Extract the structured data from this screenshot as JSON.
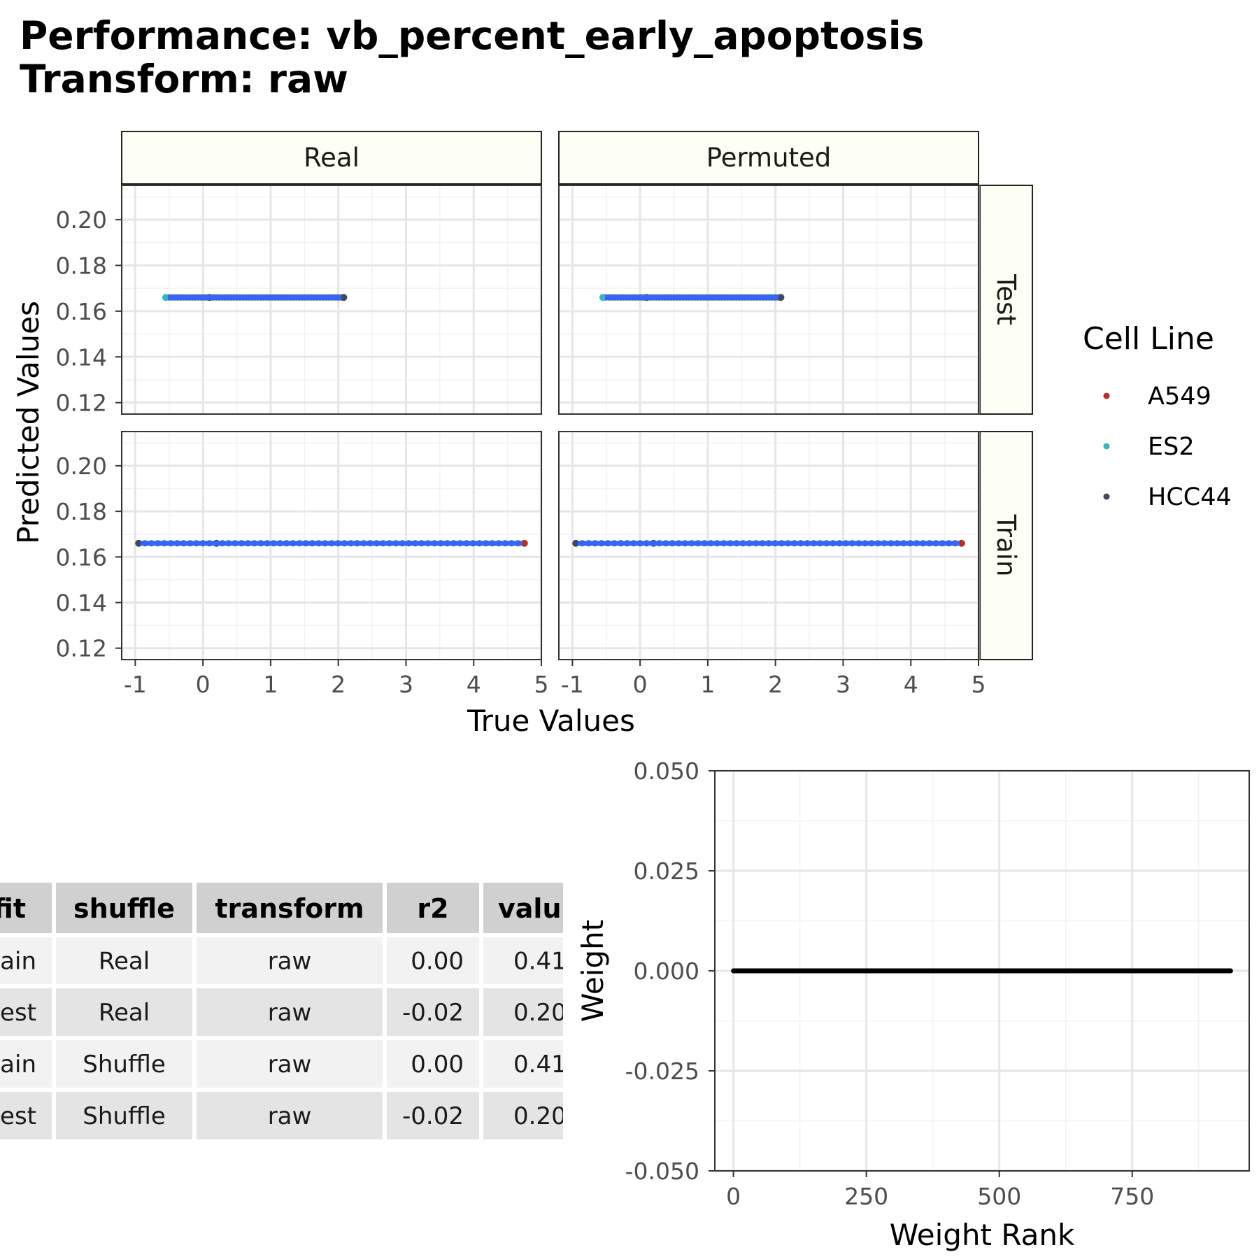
{
  "title_line1": "Performance: vb_percent_early_apoptosis",
  "title_line2": "Transform: raw",
  "colors": {
    "strip_fill": "#FDFEF4",
    "line_blue": "#3366FF",
    "A549": "#B2322A",
    "ES2": "#3AB5B8",
    "HCC44": "#3F4A60",
    "table_header": "#D0D0D0",
    "table_row_light": "#F2F2F2",
    "table_row_dark": "#E4E4E4"
  },
  "chart_data": [
    {
      "type": "scatter",
      "title": "",
      "xlabel": "True Values",
      "ylabel": "Predicted Values",
      "xlim": [
        -1.2,
        5.0
      ],
      "ylim": [
        0.115,
        0.215
      ],
      "xticks": [
        -1,
        0,
        1,
        2,
        3,
        4,
        5
      ],
      "xtick_labels": [
        "-1",
        "0",
        "1",
        "2",
        "3",
        "4",
        "5"
      ],
      "yticks": [
        0.12,
        0.14,
        0.16,
        0.18,
        0.2
      ],
      "ytick_labels": [
        "0.12",
        "0.14",
        "0.16",
        "0.18",
        "0.20"
      ],
      "grid": true,
      "facet_columns": [
        "Real",
        "Permuted"
      ],
      "facet_rows": [
        "Test",
        "Train"
      ],
      "legend": {
        "title": "Cell Line",
        "placement": "right",
        "entries": [
          "A549",
          "ES2",
          "HCC44"
        ]
      },
      "panels": [
        {
          "column": "Real",
          "row": "Test",
          "predicted": 0.166,
          "x_min": -0.55,
          "x_max": 2.08,
          "points": [
            {
              "x": -0.55,
              "y": 0.166,
              "cell_line": "ES2"
            },
            {
              "x": 0.1,
              "y": 0.166,
              "cell_line": "HCC44"
            },
            {
              "x": 2.08,
              "y": 0.166,
              "cell_line": "HCC44"
            }
          ]
        },
        {
          "column": "Permuted",
          "row": "Test",
          "predicted": 0.166,
          "x_min": -0.55,
          "x_max": 2.08,
          "points": [
            {
              "x": -0.55,
              "y": 0.166,
              "cell_line": "ES2"
            },
            {
              "x": 0.1,
              "y": 0.166,
              "cell_line": "HCC44"
            },
            {
              "x": 2.08,
              "y": 0.166,
              "cell_line": "HCC44"
            }
          ]
        },
        {
          "column": "Real",
          "row": "Train",
          "predicted": 0.166,
          "x_min": -0.95,
          "x_max": 4.75,
          "points": [
            {
              "x": -0.95,
              "y": 0.166,
              "cell_line": "HCC44"
            },
            {
              "x": 0.2,
              "y": 0.166,
              "cell_line": "HCC44"
            },
            {
              "x": 4.75,
              "y": 0.166,
              "cell_line": "A549"
            }
          ]
        },
        {
          "column": "Permuted",
          "row": "Train",
          "predicted": 0.166,
          "x_min": -0.95,
          "x_max": 4.75,
          "points": [
            {
              "x": -0.95,
              "y": 0.166,
              "cell_line": "HCC44"
            },
            {
              "x": 0.2,
              "y": 0.166,
              "cell_line": "HCC44"
            },
            {
              "x": 4.75,
              "y": 0.166,
              "cell_line": "A549"
            }
          ]
        }
      ]
    },
    {
      "type": "table",
      "columns": [
        "fit",
        "shuffle",
        "transform",
        "r2",
        "value"
      ],
      "visible_column_headers": [
        "fit",
        "shuffle",
        "transform",
        "r2",
        "valu"
      ],
      "rows": [
        [
          "Train",
          "Real",
          "raw",
          "0.00",
          "0.41"
        ],
        [
          "Test",
          "Real",
          "raw",
          "-0.02",
          "0.20"
        ],
        [
          "Train",
          "Shuffle",
          "raw",
          "0.00",
          "0.41"
        ],
        [
          "Test",
          "Shuffle",
          "raw",
          "-0.02",
          "0.20"
        ]
      ],
      "visible_cells": [
        [
          "ain",
          "Real",
          "raw",
          "0.00",
          "0.41"
        ],
        [
          "est",
          "Real",
          "raw",
          "-0.02",
          "0.20"
        ],
        [
          "ain",
          "Shuffle",
          "raw",
          "0.00",
          "0.41"
        ],
        [
          "est",
          "Shuffle",
          "raw",
          "-0.02",
          "0.20"
        ]
      ]
    },
    {
      "type": "line",
      "title": "",
      "xlabel": "Weight Rank",
      "ylabel": "Weight",
      "xlim": [
        -35,
        970
      ],
      "ylim": [
        -0.05,
        0.05
      ],
      "xticks": [
        0,
        250,
        500,
        750
      ],
      "xtick_labels": [
        "0",
        "250",
        "500",
        "750"
      ],
      "yticks": [
        -0.05,
        -0.025,
        0,
        0.025,
        0.05
      ],
      "ytick_labels": [
        "-0.050",
        "-0.025",
        "0.000",
        "0.025",
        "0.050"
      ],
      "grid": true,
      "series": [
        {
          "x": [
            0,
            935
          ],
          "y": [
            0,
            0
          ]
        }
      ]
    }
  ]
}
